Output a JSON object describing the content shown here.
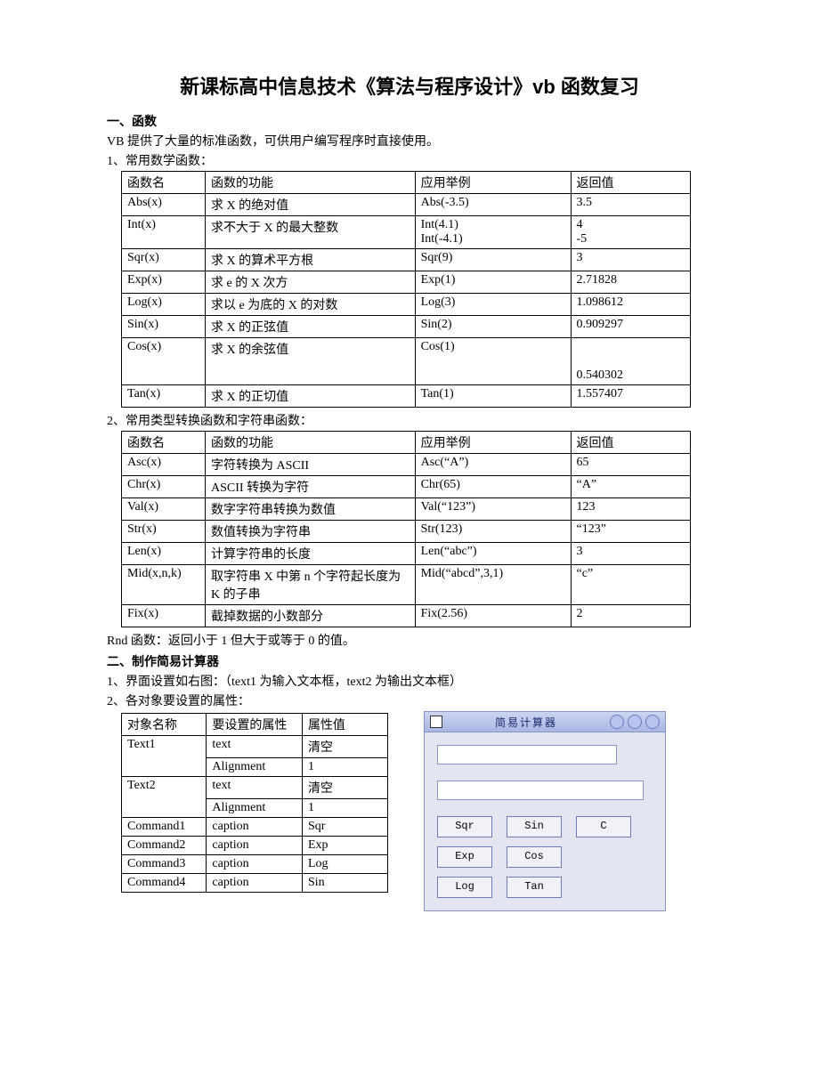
{
  "title": "新课标高中信息技术《算法与程序设计》vb 函数复习",
  "section1": "一、函数",
  "intro": "VB 提供了大量的标准函数，可供用户编写程序时直接使用。",
  "sub1": "1、常用数学函数：",
  "mathHdr": {
    "c1": "函数名",
    "c2": "函数的功能",
    "c3": "应用举例",
    "c4": "返回值"
  },
  "math": [
    {
      "c1": "Abs(x)",
      "c2": "求 X 的绝对值",
      "c3": "Abs(-3.5)",
      "c4": "3.5"
    },
    {
      "c1": "Int(x)",
      "c2": "求不大于 X 的最大整数",
      "c3": "Int(4.1)\nInt(-4.1)",
      "c4": "4\n-5"
    },
    {
      "c1": "Sqr(x)",
      "c2": "求 X 的算术平方根",
      "c3": "Sqr(9)",
      "c4": "3"
    },
    {
      "c1": "Exp(x)",
      "c2": "求 e 的 X 次方",
      "c3": "Exp(1)",
      "c4": "2.71828"
    },
    {
      "c1": "Log(x)",
      "c2": "求以 e 为底的 X 的对数",
      "c3": "Log(3)",
      "c4": "1.098612"
    },
    {
      "c1": "Sin(x)",
      "c2": "求 X 的正弦值",
      "c3": "Sin(2)",
      "c4": "0.909297"
    },
    {
      "c1": "Cos(x)",
      "c2": "求 X 的余弦值",
      "c3": "Cos(1)",
      "c4": "\n\n0.540302"
    },
    {
      "c1": "Tan(x)",
      "c2": "求 X 的正切值",
      "c3": "Tan(1)",
      "c4": "1.557407"
    }
  ],
  "sub2": "2、常用类型转换函数和字符串函数：",
  "strHdr": {
    "c1": "函数名",
    "c2": "函数的功能",
    "c3": "应用举例",
    "c4": "返回值"
  },
  "str": [
    {
      "c1": "Asc(x)",
      "c2": "字符转换为 ASCII",
      "c3": "Asc(“A”)",
      "c4": "65"
    },
    {
      "c1": "Chr(x)",
      "c2": "ASCII 转换为字符",
      "c3": "Chr(65)",
      "c4": "“A”"
    },
    {
      "c1": "Val(x)",
      "c2": "数字字符串转换为数值",
      "c3": "Val(“123”)",
      "c4": "123"
    },
    {
      "c1": "Str(x)",
      "c2": "数值转换为字符串",
      "c3": "Str(123)",
      "c4": "“123”"
    },
    {
      "c1": "Len(x)",
      "c2": "计算字符串的长度",
      "c3": "Len(“abc”)",
      "c4": "3"
    },
    {
      "c1": "Mid(x,n,k)",
      "c2": "取字符串 X 中第 n 个字符起长度为 K 的子串",
      "c3": "Mid(“abcd”,3,1)",
      "c4": "“c”"
    },
    {
      "c1": "Fix(x)",
      "c2": "截掉数据的小数部分",
      "c3": "Fix(2.56)",
      "c4": "2"
    }
  ],
  "rndNote": " Rnd 函数：返回小于 1 但大于或等于 0 的值。",
  "section2": "二、制作简易计算器",
  "ui1": "1、界面设置如右图：（text1 为输入文本框，text2 为输出文本框）",
  "ui2": "2、各对象要设置的属性：",
  "propsHdr": {
    "c1": "对象名称",
    "c2": "要设置的属性",
    "c3": "属性值"
  },
  "props": [
    {
      "c1": "Text1",
      "rows": [
        {
          "c2": "text",
          "c3": "清空"
        },
        {
          "c2": "Alignment",
          "c3": "1"
        }
      ]
    },
    {
      "c1": "Text2",
      "rows": [
        {
          "c2": "text",
          "c3": "清空"
        },
        {
          "c2": "Alignment",
          "c3": "1"
        }
      ]
    },
    {
      "c1": "Command1",
      "rows": [
        {
          "c2": "caption",
          "c3": "Sqr"
        }
      ]
    },
    {
      "c1": "Command2",
      "rows": [
        {
          "c2": "caption",
          "c3": "Exp"
        }
      ]
    },
    {
      "c1": "Command3",
      "rows": [
        {
          "c2": "caption",
          "c3": "Log"
        }
      ]
    },
    {
      "c1": "Command4",
      "rows": [
        {
          "c2": "caption",
          "c3": "Sin"
        }
      ]
    }
  ],
  "calc": {
    "title": "简易计算器",
    "buttons": [
      "Sqr",
      "Sin",
      "C",
      "Exp",
      "Cos",
      "",
      "Log",
      "Tan",
      ""
    ]
  },
  "colors": {
    "border": "#000000",
    "calcBg": "#e3e6f0",
    "calcTitle1": "#cdd5f1",
    "calcTitle2": "#a9b6e5",
    "calcBtn": "#f1f2f8",
    "calcBorder": "#6e7bbd"
  }
}
